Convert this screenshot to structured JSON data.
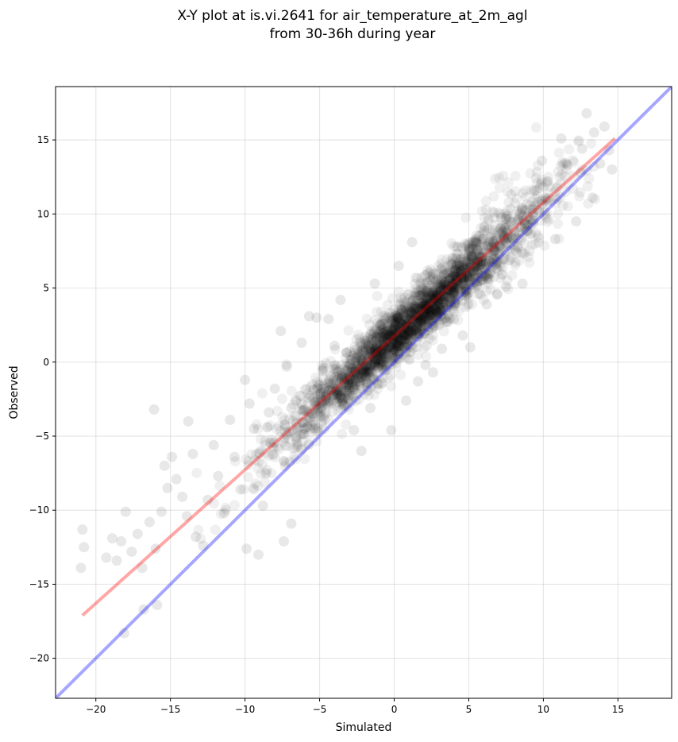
{
  "chart_data": {
    "type": "scatter",
    "title_lines": [
      "X-Y plot at is.vi.2641 for air_temperature_at_2m_agl",
      "from 30-36h during year"
    ],
    "xlabel": "Simulated",
    "ylabel": "Observed",
    "xlim": [
      -22.7,
      18.6
    ],
    "ylim": [
      -22.7,
      18.6
    ],
    "xticks": [
      -20,
      -15,
      -10,
      -5,
      0,
      5,
      10,
      15
    ],
    "yticks": [
      -20,
      -15,
      -10,
      -5,
      0,
      5,
      10,
      15
    ],
    "xtick_labels": [
      "−20",
      "−15",
      "−10",
      "−5",
      "0",
      "5",
      "10",
      "15"
    ],
    "ytick_labels": [
      "−20",
      "−15",
      "−10",
      "−5",
      "0",
      "5",
      "10",
      "15"
    ],
    "grid": true,
    "marker_color": "#000000",
    "marker_alpha": 0.06,
    "lines": [
      {
        "role": "regression",
        "color": "#ff0000",
        "alpha": 0.35,
        "x": [
          -20.9,
          14.8
        ],
        "y": [
          -17.1,
          15.1
        ]
      },
      {
        "role": "one-to-one",
        "color": "#0000ff",
        "alpha": 0.35,
        "x": [
          -22.7,
          18.6
        ],
        "y": [
          -22.7,
          18.6
        ]
      }
    ],
    "points": [
      [
        -20.9,
        -11.3
      ],
      [
        -20.8,
        -12.5
      ],
      [
        -21.0,
        -13.9
      ],
      [
        -19.3,
        -13.2
      ],
      [
        -18.9,
        -11.9
      ],
      [
        -18.6,
        -13.4
      ],
      [
        -18.0,
        -10.1
      ],
      [
        -18.3,
        -12.1
      ],
      [
        -17.6,
        -12.8
      ],
      [
        -17.2,
        -11.6
      ],
      [
        -16.9,
        -13.9
      ],
      [
        -16.4,
        -10.8
      ],
      [
        -16.0,
        -12.6
      ],
      [
        -15.6,
        -10.1
      ],
      [
        -16.8,
        -16.7
      ],
      [
        -15.9,
        -16.4
      ],
      [
        -18.1,
        -18.3
      ],
      [
        -16.1,
        -3.2
      ],
      [
        -15.4,
        -7.0
      ],
      [
        -15.2,
        -8.5
      ],
      [
        -14.9,
        -6.4
      ],
      [
        -14.6,
        -7.9
      ],
      [
        -14.2,
        -9.1
      ],
      [
        -13.8,
        -4.0
      ],
      [
        -13.5,
        -6.2
      ],
      [
        -13.9,
        -10.4
      ],
      [
        -13.3,
        -11.8
      ],
      [
        -12.8,
        -12.4
      ],
      [
        -12.5,
        -9.3
      ],
      [
        -12.1,
        -5.6
      ],
      [
        -11.8,
        -7.7
      ],
      [
        -11.4,
        -10.2
      ],
      [
        -11.0,
        -3.9
      ],
      [
        -10.7,
        -6.4
      ],
      [
        -10.3,
        -8.6
      ],
      [
        -10.0,
        -1.2
      ],
      [
        -9.7,
        -2.8
      ],
      [
        -9.4,
        -4.5
      ],
      [
        -9.9,
        -12.6
      ],
      [
        -9.1,
        -13.0
      ],
      [
        -8.8,
        -9.7
      ],
      [
        -8.4,
        -3.4
      ],
      [
        -8.0,
        -1.8
      ],
      [
        -7.6,
        2.1
      ],
      [
        -7.2,
        -0.3
      ],
      [
        -6.9,
        -3.1
      ],
      [
        -6.5,
        -5.7
      ],
      [
        -6.9,
        -10.9
      ],
      [
        -7.4,
        -12.1
      ],
      [
        -6.2,
        1.3
      ],
      [
        -5.7,
        3.1
      ],
      [
        -5.2,
        3.0
      ],
      [
        -4.8,
        -0.6
      ],
      [
        -4.4,
        2.9
      ],
      [
        -4.0,
        1.1
      ],
      [
        -3.6,
        4.2
      ],
      [
        -3.2,
        -1.1
      ],
      [
        -2.7,
        -4.6
      ],
      [
        -2.2,
        -6.0
      ],
      [
        -1.6,
        -3.1
      ],
      [
        -1.3,
        5.3
      ],
      [
        -0.8,
        -1.4
      ],
      [
        -0.2,
        -4.6
      ],
      [
        0.3,
        6.5
      ],
      [
        0.8,
        -2.6
      ],
      [
        1.2,
        8.1
      ],
      [
        1.6,
        -1.3
      ],
      [
        2.1,
        -0.2
      ],
      [
        2.6,
        -0.7
      ],
      [
        3.2,
        0.9
      ],
      [
        3.6,
        2.7
      ],
      [
        4.0,
        2.9
      ],
      [
        4.6,
        1.8
      ],
      [
        5.1,
        1.0
      ],
      [
        5.6,
        6.5
      ],
      [
        6.2,
        3.9
      ],
      [
        6.9,
        4.6
      ],
      [
        7.5,
        5.1
      ],
      [
        8.3,
        7.8
      ],
      [
        8.6,
        5.3
      ],
      [
        9.3,
        9.9
      ],
      [
        9.9,
        13.6
      ],
      [
        10.3,
        12.2
      ],
      [
        10.8,
        8.3
      ],
      [
        11.2,
        15.1
      ],
      [
        11.6,
        13.3
      ],
      [
        12.2,
        9.5
      ],
      [
        12.5,
        12.8
      ],
      [
        12.9,
        16.8
      ],
      [
        13.4,
        15.5
      ],
      [
        13.8,
        13.4
      ],
      [
        14.1,
        15.9
      ],
      [
        14.4,
        14.3
      ],
      [
        14.6,
        13.0
      ],
      [
        13.3,
        11.1
      ],
      [
        12.6,
        14.4
      ]
    ]
  }
}
